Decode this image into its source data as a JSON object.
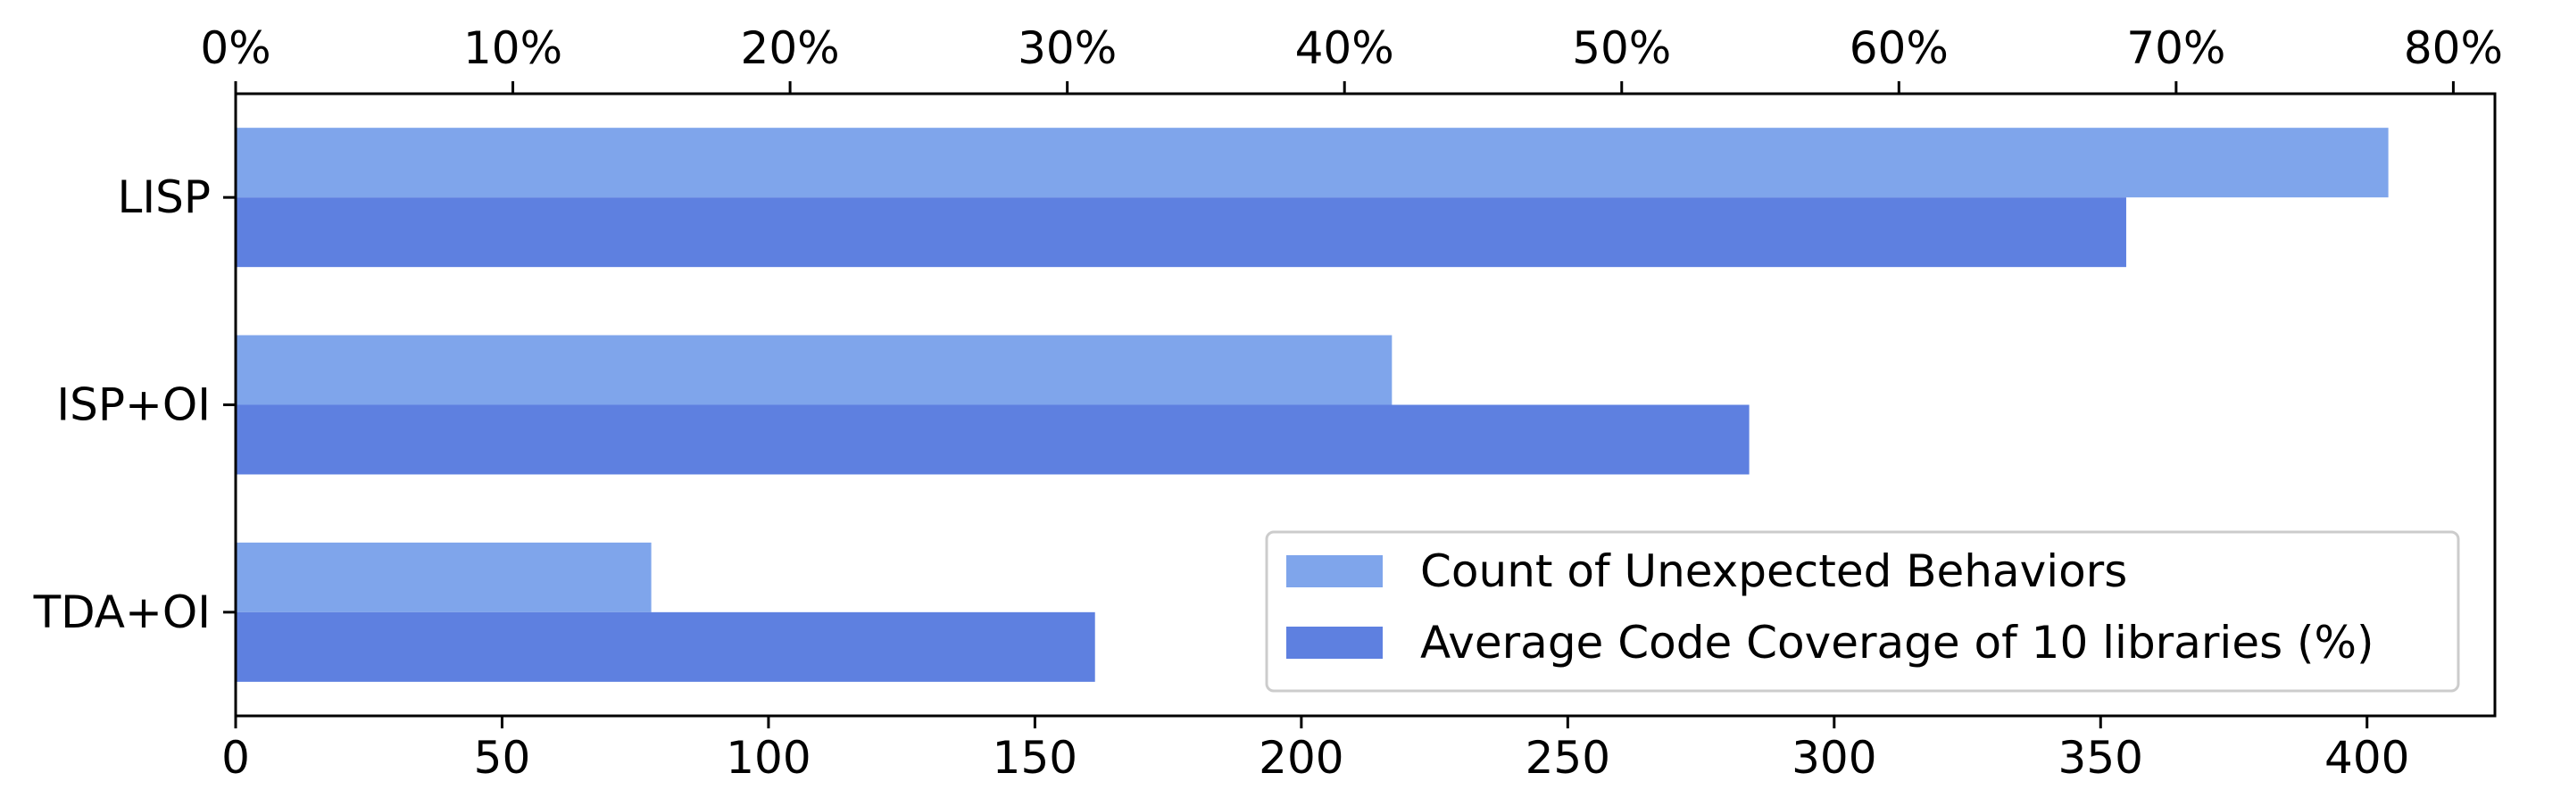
{
  "chart_data": {
    "type": "bar",
    "orientation": "horizontal",
    "categories": [
      "LISP",
      "ISP+OI",
      "TDA+OI"
    ],
    "series": [
      {
        "name": "Count of Unexpected Behaviors",
        "axis": "bottom",
        "values": [
          404,
          217,
          78
        ],
        "color": "#7fa5eb"
      },
      {
        "name": "Average Code Coverage of 10 libraries (%)",
        "axis": "top",
        "values": [
          68.2,
          54.6,
          31.0
        ],
        "color": "#5e80e0"
      }
    ],
    "bottom_axis": {
      "ticks": [
        0,
        50,
        100,
        150,
        200,
        250,
        300,
        350,
        400
      ],
      "tick_labels": [
        "0",
        "50",
        "100",
        "150",
        "200",
        "250",
        "300",
        "350",
        "400"
      ],
      "xlim": [
        0,
        424
      ]
    },
    "top_axis": {
      "ticks": [
        0,
        10,
        20,
        30,
        40,
        50,
        60,
        70,
        80
      ],
      "tick_labels": [
        "0%",
        "10%",
        "20%",
        "30%",
        "40%",
        "50%",
        "60%",
        "70%",
        "80%"
      ],
      "xlim": [
        0,
        81.5
      ]
    },
    "legend_position": "lower-right",
    "grid": false
  }
}
